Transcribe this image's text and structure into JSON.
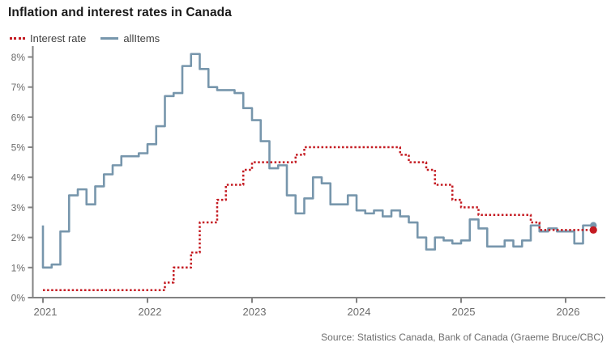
{
  "title": "Inflation and interest rates in Canada",
  "legend": {
    "items": [
      {
        "label": "Interest rate",
        "color": "#c41a21",
        "style": "dotted"
      },
      {
        "label": "allItems",
        "color": "#7796ac",
        "style": "solid"
      }
    ]
  },
  "source": "Source: Statistics Canada, Bank of Canada (Graeme Bruce/CBC)",
  "colors": {
    "interest_rate": "#c41a21",
    "all_items": "#7796ac",
    "axis": "#828282",
    "tick_text": "#6b6b6b",
    "title_text": "#1a1a1a",
    "background": "#ffffff"
  },
  "chart_data": {
    "type": "line",
    "line_style": "step-after",
    "title": "Inflation and interest rates in Canada",
    "xlabel": "",
    "ylabel": "",
    "x_start": "2021-01",
    "x_interval": "month",
    "x_ticks": [
      "2021",
      "2022",
      "2023",
      "2024",
      "2025",
      "2026"
    ],
    "y_ticks": [
      "0%",
      "1%",
      "2%",
      "3%",
      "4%",
      "5%",
      "6%",
      "7%",
      "8%"
    ],
    "ylim": [
      0,
      8
    ],
    "grid": false,
    "legend_position": "top-left",
    "series": [
      {
        "name": "allItems",
        "color": "#7796ac",
        "dash": "solid",
        "lead_value": 2.4,
        "end_dot_value": 2.4,
        "values": [
          1.0,
          1.1,
          2.2,
          3.4,
          3.6,
          3.1,
          3.7,
          4.1,
          4.4,
          4.7,
          4.7,
          4.8,
          5.1,
          5.7,
          6.7,
          6.8,
          7.7,
          8.1,
          7.6,
          7.0,
          6.9,
          6.9,
          6.8,
          6.3,
          5.9,
          5.2,
          4.3,
          4.4,
          3.4,
          2.8,
          3.3,
          4.0,
          3.8,
          3.1,
          3.1,
          3.4,
          2.9,
          2.8,
          2.9,
          2.7,
          2.9,
          2.7,
          2.5,
          2.0,
          1.6,
          2.0,
          1.9,
          1.8,
          1.9,
          2.6,
          2.3,
          1.7,
          1.7,
          1.9,
          1.7,
          1.9,
          2.4,
          2.2,
          2.3,
          2.2,
          2.2,
          1.8,
          2.4,
          2.4
        ]
      },
      {
        "name": "Interest rate",
        "color": "#c41a21",
        "dash": "dotted",
        "end_dot_value": 2.25,
        "values": [
          0.25,
          0.25,
          0.25,
          0.25,
          0.25,
          0.25,
          0.25,
          0.25,
          0.25,
          0.25,
          0.25,
          0.25,
          0.25,
          0.25,
          0.5,
          1.0,
          1.0,
          1.5,
          2.5,
          2.5,
          3.25,
          3.75,
          3.75,
          4.25,
          4.5,
          4.5,
          4.5,
          4.5,
          4.5,
          4.75,
          5.0,
          5.0,
          5.0,
          5.0,
          5.0,
          5.0,
          5.0,
          5.0,
          5.0,
          5.0,
          5.0,
          4.75,
          4.5,
          4.5,
          4.25,
          3.75,
          3.75,
          3.25,
          3.0,
          3.0,
          2.75,
          2.75,
          2.75,
          2.75,
          2.75,
          2.75,
          2.5,
          2.25,
          2.25,
          2.25,
          2.25,
          2.25,
          2.25,
          2.25
        ]
      }
    ]
  }
}
